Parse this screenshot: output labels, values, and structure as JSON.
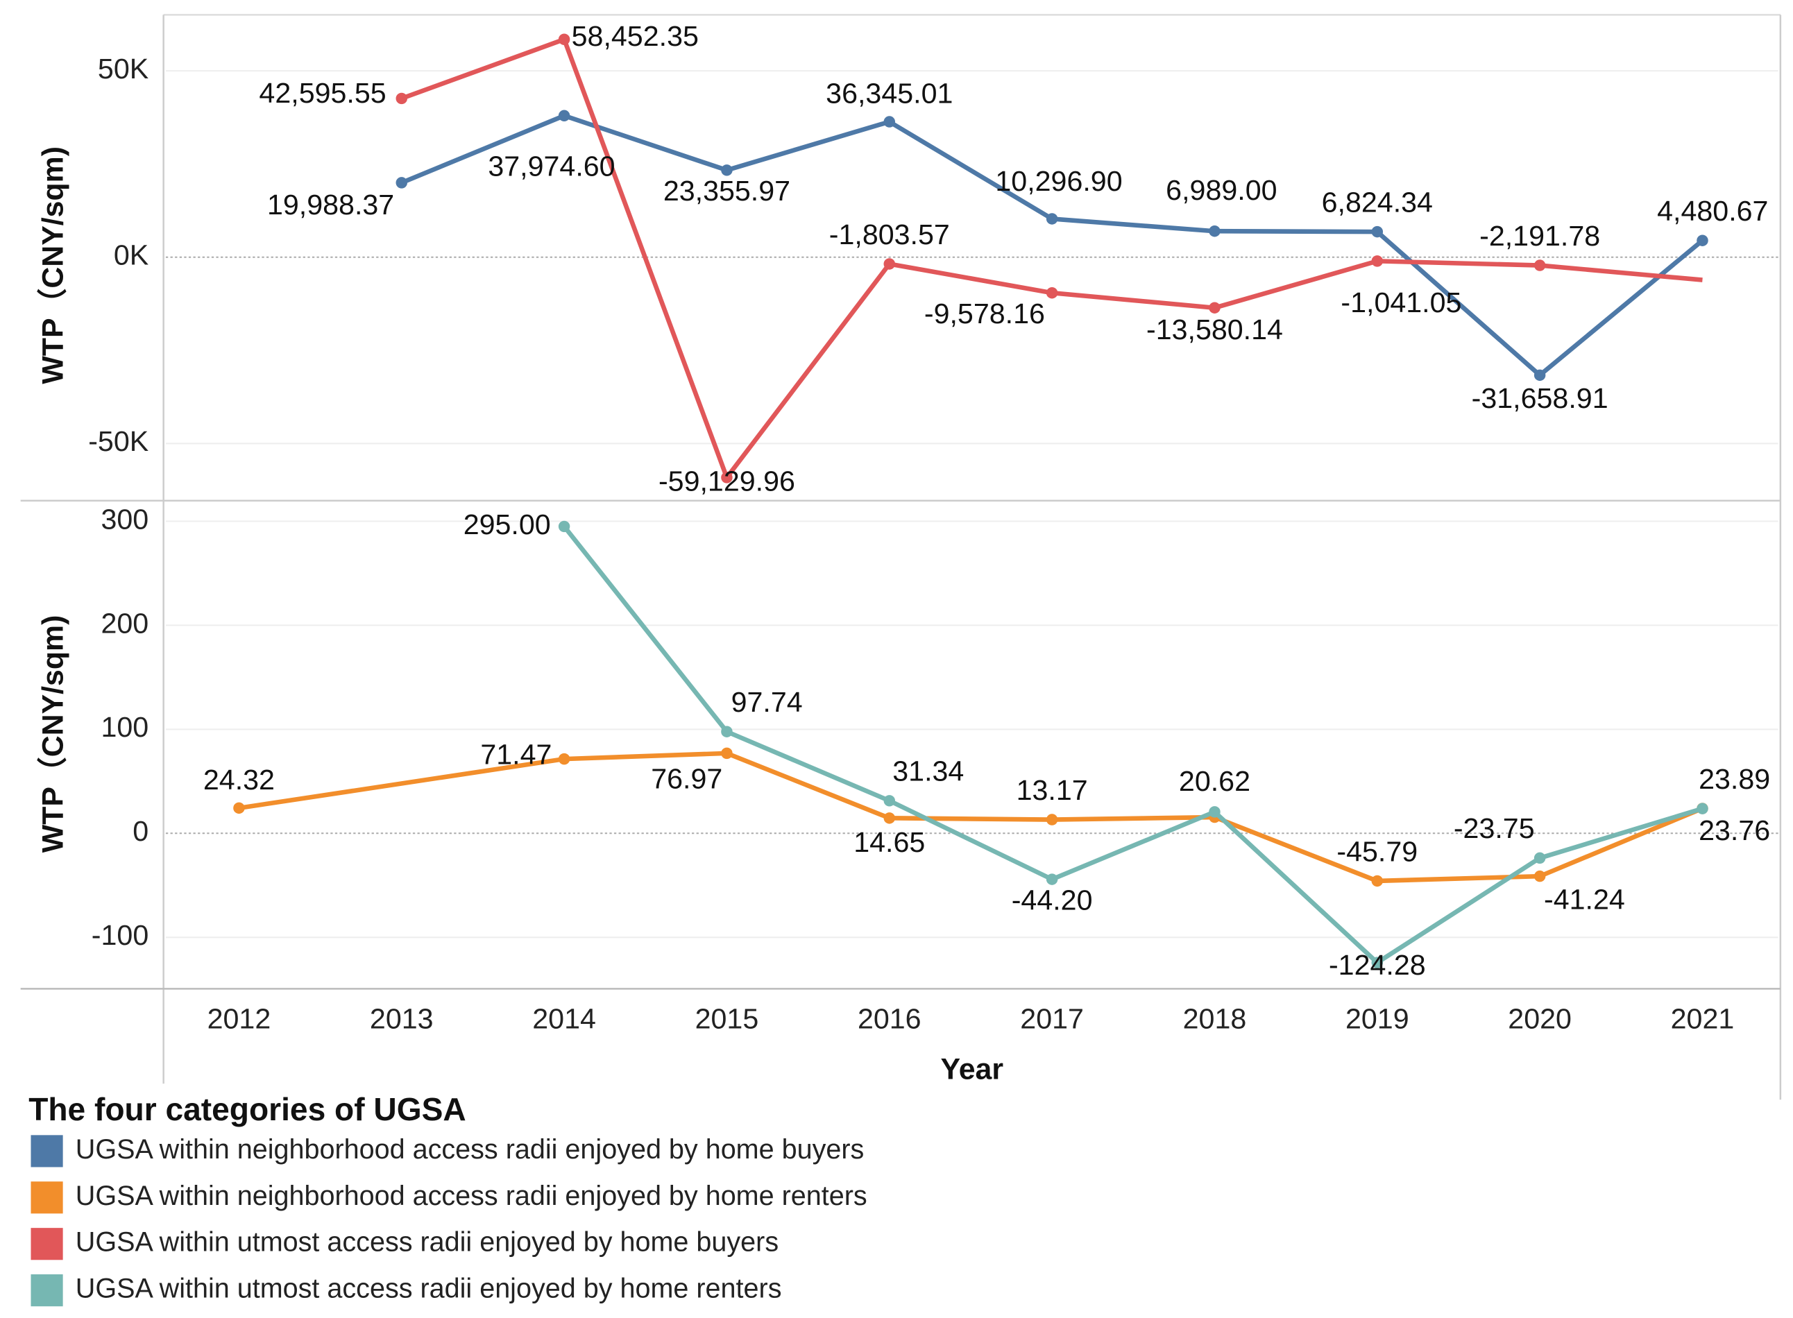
{
  "chart_data": [
    {
      "type": "line",
      "panel": "top",
      "ylabel": "WTP（CNY/sqm)",
      "yticks": [
        {
          "value": 50000,
          "label": "50K"
        },
        {
          "value": 0,
          "label": "0K"
        },
        {
          "value": -50000,
          "label": "-50K"
        }
      ],
      "ylim": [
        -62000,
        65000
      ],
      "x": [
        2012,
        2013,
        2014,
        2015,
        2016,
        2017,
        2018,
        2019,
        2020,
        2021
      ],
      "series": [
        {
          "name": "UGSA within neighborhood access radii enjoyed by home buyers",
          "color": "#4e79a7",
          "values": [
            null,
            19988.37,
            37974.6,
            23355.97,
            36345.01,
            10296.9,
            6989.0,
            6824.34,
            -31658.91,
            4480.67
          ],
          "labels": [
            null,
            "19,988.37",
            "37,974.60",
            "23,355.97",
            "36,345.01",
            "10,296.90",
            "6,989.00",
            "6,824.34",
            "-31,658.91",
            "4,480.67"
          ]
        },
        {
          "name": "UGSA within utmost access radii enjoyed by home buyers",
          "color": "#e15759",
          "values": [
            null,
            42595.55,
            58452.35,
            -59129.96,
            -1803.57,
            -9578.16,
            -13580.14,
            -1041.05,
            -2191.78,
            -6100
          ],
          "labels": [
            null,
            "42,595.55",
            "58,452.35",
            "-59,129.96",
            "-1,803.57",
            "-9,578.16",
            "-13,580.14",
            "-1,041.05",
            "-2,191.78",
            null
          ]
        }
      ]
    },
    {
      "type": "line",
      "panel": "bottom",
      "ylabel": "WTP（CNY/sqm)",
      "xlabel": "Year",
      "yticks": [
        {
          "value": 300,
          "label": "300"
        },
        {
          "value": 200,
          "label": "200"
        },
        {
          "value": 100,
          "label": "100"
        },
        {
          "value": 0,
          "label": "0"
        },
        {
          "value": -100,
          "label": "-100"
        }
      ],
      "ylim": [
        -148,
        320
      ],
      "x": [
        2012,
        2013,
        2014,
        2015,
        2016,
        2017,
        2018,
        2019,
        2020,
        2021
      ],
      "xticklabels": [
        "2012",
        "2013",
        "2014",
        "2015",
        "2016",
        "2017",
        "2018",
        "2019",
        "2020",
        "2021"
      ],
      "series": [
        {
          "name": "UGSA within neighborhood access radii enjoyed by home renters",
          "color": "#f28e2b",
          "values": [
            24.32,
            null,
            71.47,
            76.97,
            14.65,
            13.17,
            15.5,
            -45.79,
            -41.24,
            23.89
          ],
          "labels": [
            "24.32",
            null,
            "71.47",
            "76.97",
            "14.65",
            "13.17",
            null,
            "-45.79",
            "-41.24",
            "23.89"
          ]
        },
        {
          "name": "UGSA within utmost access radii enjoyed by home renters",
          "color": "#76b7b2",
          "values": [
            null,
            null,
            295.0,
            97.74,
            31.34,
            -44.2,
            20.62,
            -124.28,
            -23.75,
            23.76
          ],
          "labels": [
            null,
            null,
            "295.00",
            "97.74",
            "31.34",
            "-44.20",
            "20.62",
            "-124.28",
            "-23.75",
            "23.76"
          ]
        }
      ]
    }
  ],
  "legend": {
    "title": "The four categories of UGSA",
    "items": [
      {
        "label": "UGSA within neighborhood access radii enjoyed by home buyers",
        "color": "#4e79a7"
      },
      {
        "label": "UGSA within neighborhood access radii enjoyed by home renters",
        "color": "#f28e2b"
      },
      {
        "label": "UGSA within utmost access radii enjoyed by home buyers",
        "color": "#e15759"
      },
      {
        "label": "UGSA within utmost access radii enjoyed by home renters",
        "color": "#76b7b2"
      }
    ]
  }
}
